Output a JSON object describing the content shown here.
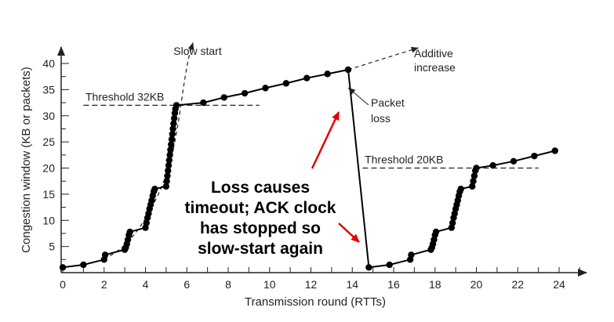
{
  "chart_data": {
    "type": "line",
    "title": "",
    "xlabel": "Transmission round (RTTs)",
    "ylabel": "Congestion window (KB or packets)",
    "xlim": [
      0,
      25
    ],
    "ylim": [
      0,
      43
    ],
    "x_ticks": [
      0,
      2,
      4,
      6,
      8,
      10,
      12,
      14,
      16,
      18,
      20,
      22,
      24
    ],
    "y_ticks": [
      5,
      10,
      15,
      20,
      25,
      30,
      35,
      40
    ],
    "grid": false,
    "legend": "none",
    "series": [
      {
        "points": [
          [
            0,
            1
          ],
          [
            1,
            1.5
          ],
          [
            2,
            2.5
          ],
          [
            2.05,
            3.4
          ],
          [
            3,
            4.4
          ],
          [
            3.05,
            4.8
          ],
          [
            3.1,
            5.5
          ],
          [
            3.15,
            6.3
          ],
          [
            3.2,
            7.2
          ],
          [
            3.25,
            7.8
          ],
          [
            4,
            8.6
          ],
          [
            4.05,
            9.5
          ],
          [
            4.1,
            10.5
          ],
          [
            4.15,
            11.3
          ],
          [
            4.2,
            12.2
          ],
          [
            4.25,
            13.0
          ],
          [
            4.3,
            13.8
          ],
          [
            4.35,
            14.7
          ],
          [
            4.4,
            15.5
          ],
          [
            4.45,
            16.0
          ],
          [
            5,
            16.5
          ],
          [
            5.03,
            17.5
          ],
          [
            5.06,
            18.5
          ],
          [
            5.09,
            19.5
          ],
          [
            5.12,
            20.5
          ],
          [
            5.15,
            21.5
          ],
          [
            5.18,
            22.5
          ],
          [
            5.21,
            23.5
          ],
          [
            5.24,
            24.5
          ],
          [
            5.27,
            25.5
          ],
          [
            5.3,
            26.5
          ],
          [
            5.33,
            27.5
          ],
          [
            5.36,
            28.5
          ],
          [
            5.39,
            29.5
          ],
          [
            5.42,
            30.5
          ],
          [
            5.45,
            31.3
          ],
          [
            5.5,
            32
          ],
          [
            6.8,
            32.5
          ],
          [
            7.8,
            33.5
          ],
          [
            8.8,
            34.3
          ],
          [
            9.8,
            35.3
          ],
          [
            10.8,
            36.2
          ],
          [
            11.8,
            37.2
          ],
          [
            12.8,
            38.0
          ],
          [
            13.8,
            38.8
          ],
          [
            14.8,
            1
          ],
          [
            15.8,
            1.5
          ],
          [
            16.8,
            2.5
          ],
          [
            16.85,
            3.4
          ],
          [
            17.8,
            4.4
          ],
          [
            17.85,
            4.8
          ],
          [
            17.9,
            5.5
          ],
          [
            17.95,
            6.3
          ],
          [
            18,
            7.2
          ],
          [
            18.05,
            7.8
          ],
          [
            18.8,
            8.6
          ],
          [
            18.85,
            9.5
          ],
          [
            18.9,
            10.5
          ],
          [
            18.95,
            11.3
          ],
          [
            19,
            12.2
          ],
          [
            19.05,
            13.0
          ],
          [
            19.1,
            13.8
          ],
          [
            19.15,
            14.7
          ],
          [
            19.2,
            15.5
          ],
          [
            19.25,
            16.0
          ],
          [
            19.8,
            16.5
          ],
          [
            19.85,
            17.5
          ],
          [
            19.9,
            18.5
          ],
          [
            19.95,
            19.5
          ],
          [
            20,
            20
          ],
          [
            20.8,
            20.5
          ],
          [
            21.8,
            21.3
          ],
          [
            22.8,
            22.3
          ],
          [
            23.8,
            23.3
          ]
        ]
      }
    ],
    "slow_start_curve": [
      [
        2,
        2.5
      ],
      [
        3,
        5
      ],
      [
        4,
        10
      ],
      [
        5,
        18
      ],
      [
        5.5,
        26
      ],
      [
        6,
        40
      ],
      [
        6.3,
        44
      ]
    ],
    "additive_increase_extension": [
      [
        13.8,
        38.8
      ],
      [
        17.2,
        43
      ]
    ],
    "thresholds": [
      {
        "label": "Threshold 32KB",
        "y": 32,
        "x_from": 1,
        "x_to": 9.5
      },
      {
        "label": "Threshold 20KB",
        "y": 20,
        "x_from": 14.5,
        "x_to": 23
      }
    ],
    "annotations": [
      {
        "id": "slow-start",
        "text": "Slow start"
      },
      {
        "id": "additive-increase",
        "lines": [
          "Additive",
          "increase"
        ]
      },
      {
        "id": "packet-loss",
        "lines": [
          "Packet",
          "loss"
        ]
      }
    ],
    "callout": {
      "lines": [
        "Loss causes",
        "timeout; ACK clock",
        "has stopped so",
        "slow-start again"
      ],
      "color": "#000000",
      "arrow_color": "#e00000"
    }
  }
}
